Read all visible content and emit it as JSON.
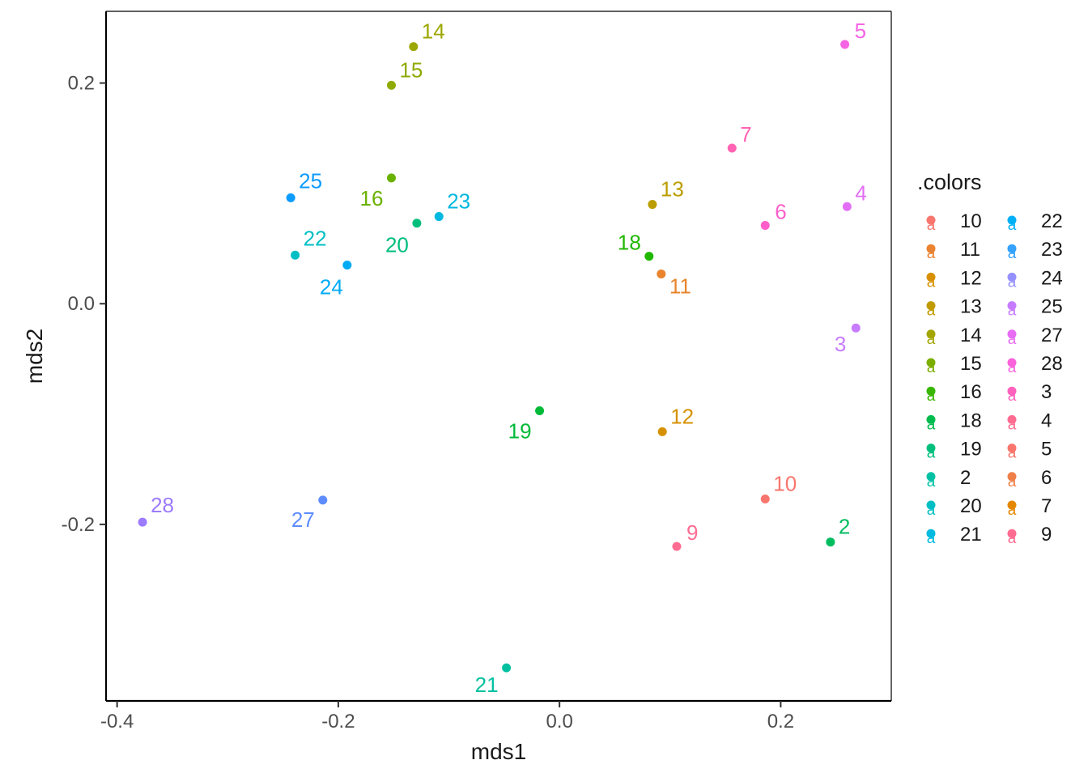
{
  "chart_data": {
    "type": "scatter",
    "title": "",
    "xlabel": "mds1",
    "ylabel": "mds2",
    "xlim": [
      -0.41,
      0.3
    ],
    "ylim": [
      -0.36,
      0.265
    ],
    "x_ticks": [
      {
        "value": -0.4,
        "label": "-0.4"
      },
      {
        "value": -0.2,
        "label": "-0.2"
      },
      {
        "value": 0.0,
        "label": "0.0"
      },
      {
        "value": 0.2,
        "label": "0.2"
      }
    ],
    "y_ticks": [
      {
        "value": -0.2,
        "label": "-0.2"
      },
      {
        "value": 0.0,
        "label": "0.0"
      },
      {
        "value": 0.2,
        "label": "0.2"
      }
    ],
    "grid": false,
    "legend": {
      "title": ".colors",
      "placement": "right",
      "columns": 2,
      "glyph": "a",
      "entries": [
        {
          "label": "10",
          "color": "#F8766D"
        },
        {
          "label": "11",
          "color": "#EA8331"
        },
        {
          "label": "12",
          "color": "#D89000"
        },
        {
          "label": "13",
          "color": "#C09B00"
        },
        {
          "label": "14",
          "color": "#A3A500"
        },
        {
          "label": "15",
          "color": "#7CAE00"
        },
        {
          "label": "16",
          "color": "#39B600"
        },
        {
          "label": "18",
          "color": "#00BB4E"
        },
        {
          "label": "19",
          "color": "#00BF7D"
        },
        {
          "label": "2",
          "color": "#00C1A3"
        },
        {
          "label": "20",
          "color": "#00BFC4"
        },
        {
          "label": "21",
          "color": "#00BAE0"
        },
        {
          "label": "22",
          "color": "#00B0F6"
        },
        {
          "label": "23",
          "color": "#35A2FF"
        },
        {
          "label": "24",
          "color": "#9590FF"
        },
        {
          "label": "25",
          "color": "#C77CFF"
        },
        {
          "label": "27",
          "color": "#E76BF3"
        },
        {
          "label": "28",
          "color": "#FA62DB"
        },
        {
          "label": "3",
          "color": "#FF62BC"
        },
        {
          "label": "4",
          "color": "#FF6C91"
        },
        {
          "label": "5",
          "color": "#F8766D"
        },
        {
          "label": "6",
          "color": "#EF7F49"
        },
        {
          "label": "7",
          "color": "#E58700"
        },
        {
          "label": "9",
          "color": "#FF6C91"
        }
      ]
    },
    "points": [
      {
        "label": "10",
        "x": 0.186,
        "y": -0.177,
        "color": "#F8766D"
      },
      {
        "label": "11",
        "x": 0.092,
        "y": 0.027,
        "color": "#E9842C"
      },
      {
        "label": "12",
        "x": 0.093,
        "y": -0.116,
        "color": "#D69100"
      },
      {
        "label": "13",
        "x": 0.084,
        "y": 0.09,
        "color": "#BC9D00"
      },
      {
        "label": "14",
        "x": -0.132,
        "y": 0.233,
        "color": "#9CA700"
      },
      {
        "label": "15",
        "x": -0.152,
        "y": 0.198,
        "color": "#8FAA00"
      },
      {
        "label": "16",
        "x": -0.152,
        "y": 0.114,
        "color": "#6BB100"
      },
      {
        "label": "18",
        "x": 0.081,
        "y": 0.043,
        "color": "#1FB700"
      },
      {
        "label": "19",
        "x": -0.018,
        "y": -0.097,
        "color": "#00BA38"
      },
      {
        "label": "2",
        "x": 0.245,
        "y": -0.216,
        "color": "#00BD5F"
      },
      {
        "label": "20",
        "x": -0.129,
        "y": 0.073,
        "color": "#00BF7D"
      },
      {
        "label": "21",
        "x": -0.048,
        "y": -0.33,
        "color": "#00C0A0"
      },
      {
        "label": "22",
        "x": -0.239,
        "y": 0.044,
        "color": "#00BFC4"
      },
      {
        "label": "23",
        "x": -0.109,
        "y": 0.079,
        "color": "#00B8E0"
      },
      {
        "label": "24",
        "x": -0.192,
        "y": 0.035,
        "color": "#00ABF5"
      },
      {
        "label": "25",
        "x": -0.243,
        "y": 0.096,
        "color": "#0C9BFF"
      },
      {
        "label": "27",
        "x": -0.214,
        "y": -0.178,
        "color": "#5E8CFF"
      },
      {
        "label": "28",
        "x": -0.377,
        "y": -0.198,
        "color": "#9C7BFF"
      },
      {
        "label": "3",
        "x": 0.268,
        "y": -0.022,
        "color": "#C77CFF"
      },
      {
        "label": "4",
        "x": 0.26,
        "y": 0.088,
        "color": "#E36EF6"
      },
      {
        "label": "5",
        "x": 0.258,
        "y": 0.235,
        "color": "#F564E3"
      },
      {
        "label": "6",
        "x": 0.186,
        "y": 0.071,
        "color": "#FF5FCB"
      },
      {
        "label": "7",
        "x": 0.156,
        "y": 0.141,
        "color": "#FF63B3"
      },
      {
        "label": "9",
        "x": 0.106,
        "y": -0.22,
        "color": "#FF6C91"
      }
    ]
  }
}
